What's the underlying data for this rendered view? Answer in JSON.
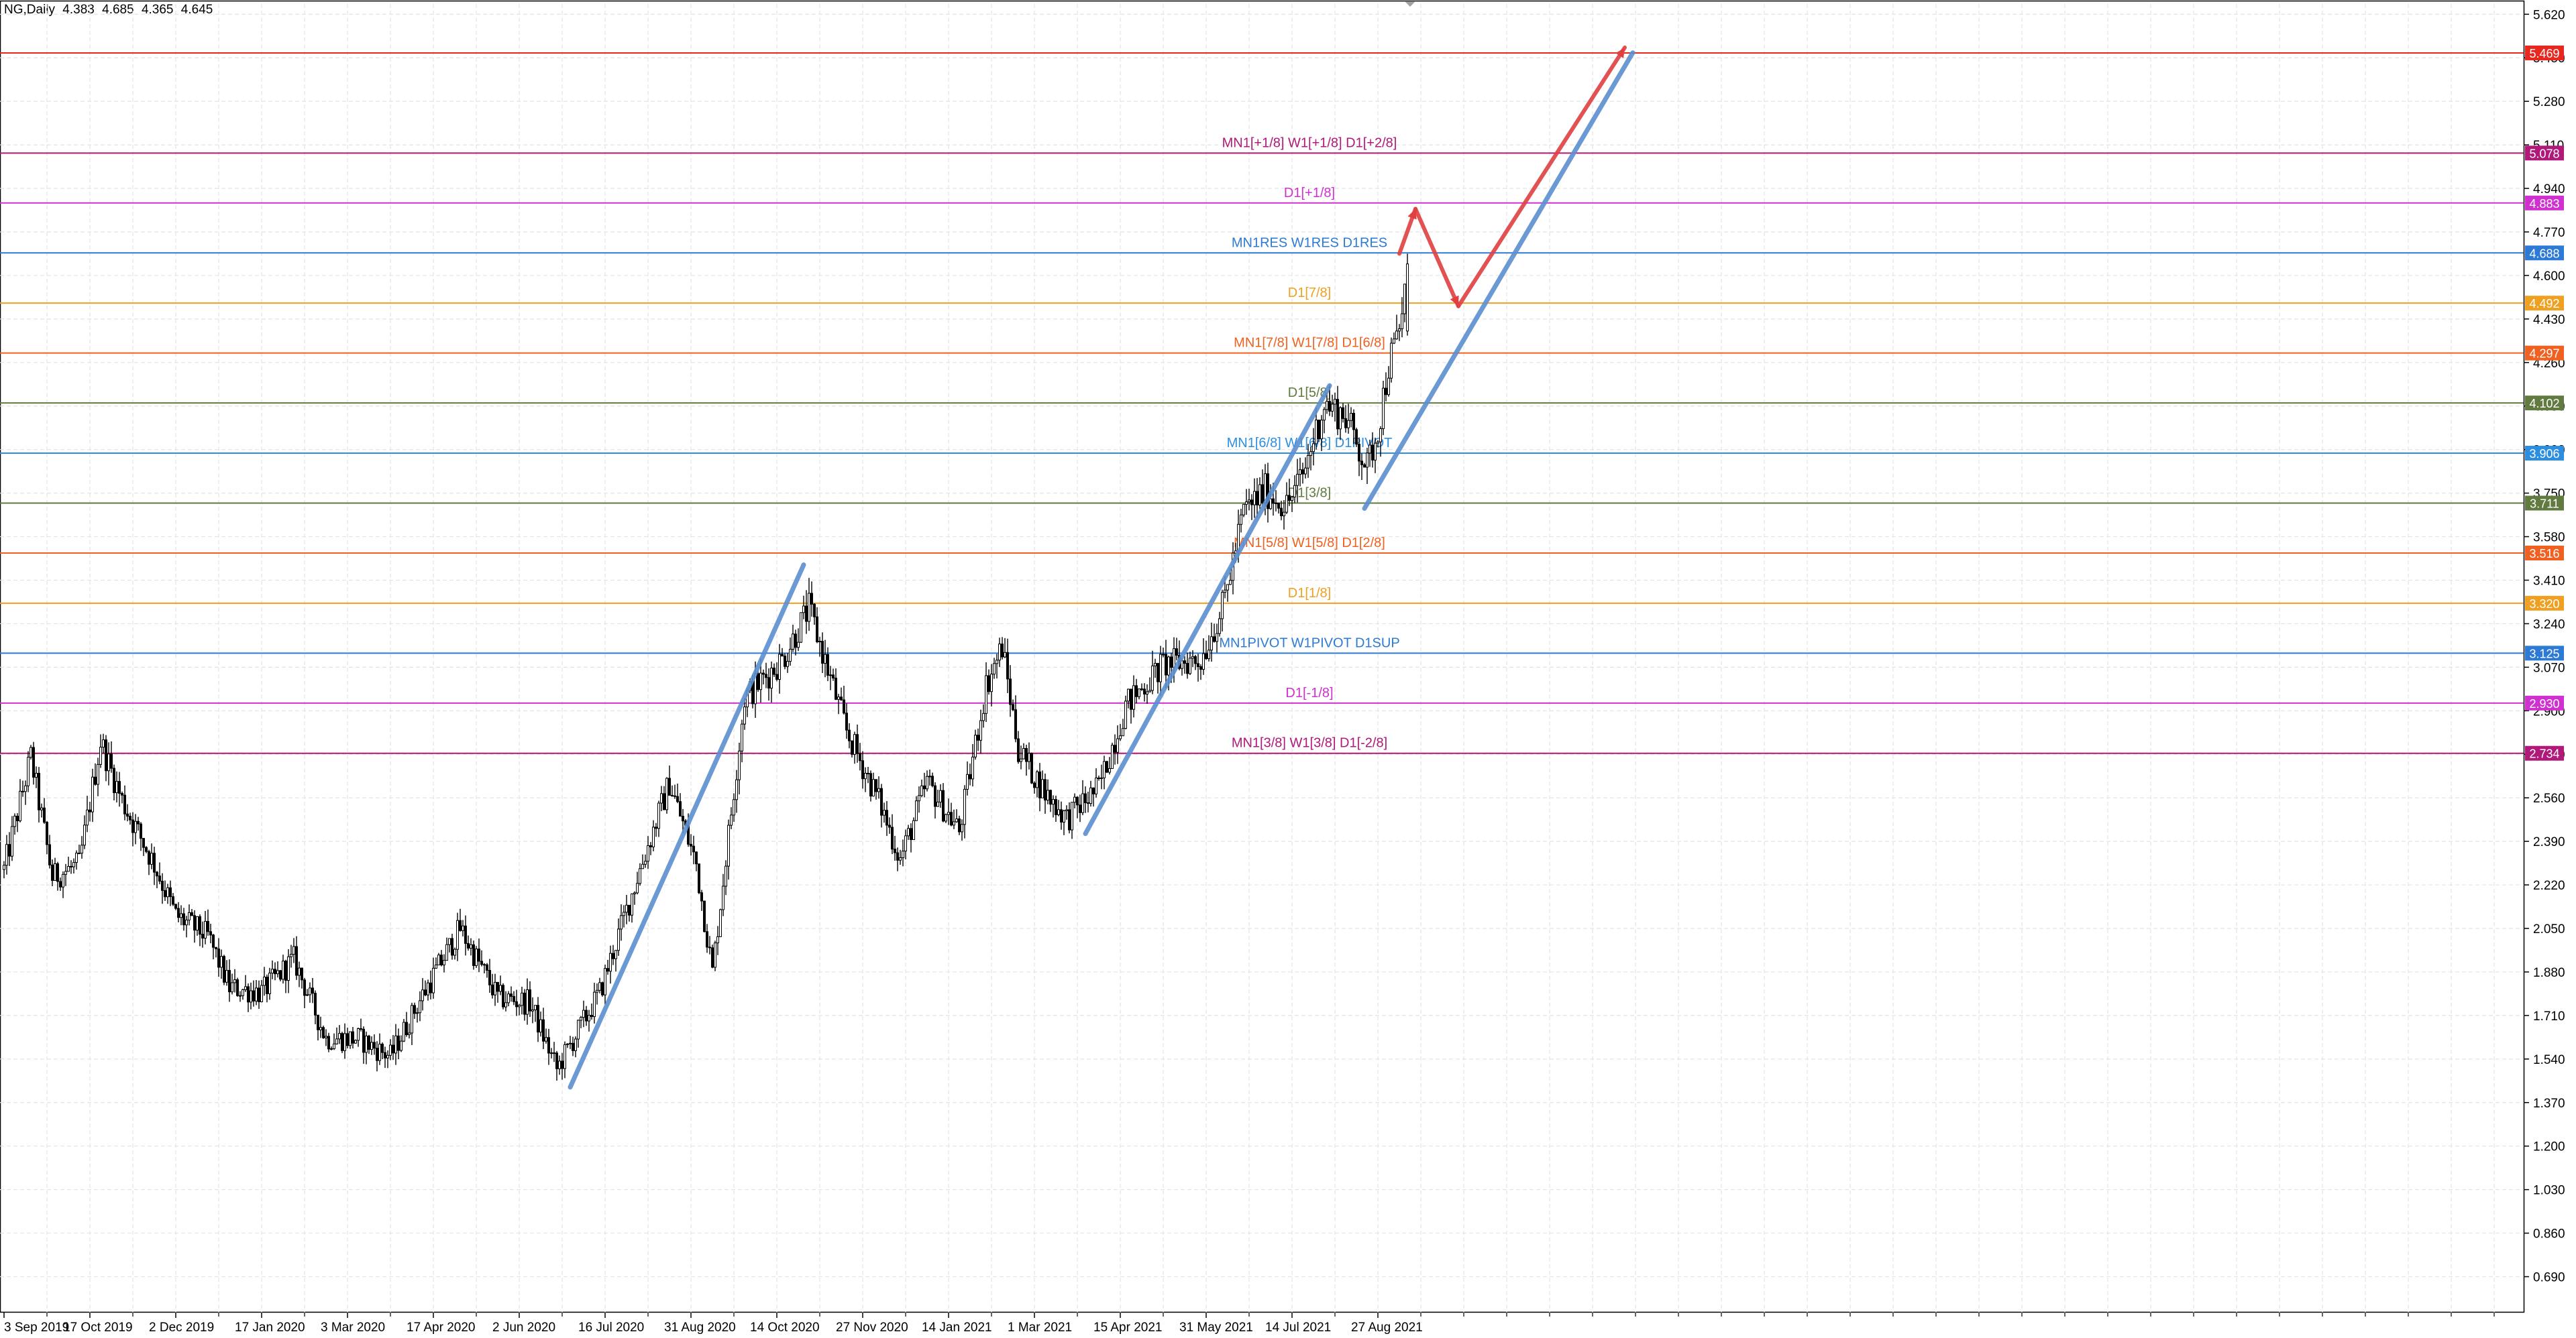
{
  "header": {
    "symbol": "NG,Daily",
    "open": "4.383",
    "high": "4.685",
    "low": "4.365",
    "close": "4.645"
  },
  "colors": {
    "background": "#ffffff",
    "grid": "#e4e4e4",
    "axis": "#000000",
    "candle_up": "#000000",
    "candle_down": "#000000",
    "trendline_blue": "#5b8fd0",
    "projection_red": "#e04040"
  },
  "chart_data": {
    "type": "candlestick",
    "symbol": "NG",
    "timeframe": "Daily",
    "y_axis": {
      "side": "right",
      "range": [
        0.55,
        5.66
      ],
      "ticks": [
        "5.620",
        "5.450",
        "5.280",
        "5.110",
        "4.940",
        "4.770",
        "4.600",
        "4.430",
        "4.260",
        "4.090",
        "3.920",
        "3.750",
        "3.580",
        "3.410",
        "3.240",
        "3.070",
        "2.900",
        "2.730",
        "2.560",
        "2.390",
        "2.220",
        "2.050",
        "1.880",
        "1.710",
        "1.540",
        "1.370",
        "1.200",
        "1.030",
        "0.860",
        "0.690"
      ]
    },
    "x_axis": {
      "labels": [
        "3 Sep 2019",
        "17 Oct 2019",
        "2 Dec 2019",
        "17 Jan 2020",
        "3 Mar 2020",
        "17 Apr 2020",
        "2 Jun 2020",
        "16 Jul 2020",
        "31 Aug 2020",
        "14 Oct 2020",
        "27 Nov 2020",
        "14 Jan 2021",
        "1 Mar 2021",
        "15 Apr 2021",
        "31 May 2021",
        "14 Jul 2021",
        "27 Aug 2021"
      ],
      "label_bars": [
        0,
        32,
        64,
        96,
        128,
        160,
        192,
        224,
        256,
        288,
        320,
        352,
        384,
        416,
        448,
        480,
        512
      ],
      "bar_spacing_px": 4
    },
    "price_levels": [
      {
        "value": 5.469,
        "tag": "5.469",
        "label": "",
        "color": "#e8281e"
      },
      {
        "value": 5.078,
        "tag": "5.078",
        "label": "MN1[+1/8] W1[+1/8] D1[+2/8]",
        "color": "#b0187a"
      },
      {
        "value": 4.883,
        "tag": "4.883",
        "label": "D1[+1/8]",
        "color": "#d030d0"
      },
      {
        "value": 4.688,
        "tag": "4.688",
        "label": "MN1RES W1RES D1RES",
        "color": "#2c7ad6"
      },
      {
        "value": 4.492,
        "tag": "4.492",
        "label": "D1[7/8]",
        "color": "#f0a020"
      },
      {
        "value": 4.297,
        "tag": "4.297",
        "label": "MN1[7/8] W1[7/8] D1[6/8]",
        "color": "#f06020"
      },
      {
        "value": 4.102,
        "tag": "4.102",
        "label": "D1[5/8]",
        "color": "#607a40"
      },
      {
        "value": 3.906,
        "tag": "3.906",
        "label": "MN1[6/8] W1[6/8] D1PIVOT",
        "color": "#2c8ee0"
      },
      {
        "value": 3.711,
        "tag": "3.711",
        "label": "D1[3/8]",
        "color": "#607a40"
      },
      {
        "value": 3.516,
        "tag": "3.516",
        "label": "MN1[5/8] W1[5/8] D1[2/8]",
        "color": "#f06020"
      },
      {
        "value": 3.32,
        "tag": "3.320",
        "label": "D1[1/8]",
        "color": "#f0a020"
      },
      {
        "value": 3.125,
        "tag": "3.125",
        "label": "MN1PIVOT W1PIVOT D1SUP",
        "color": "#2c7ad6"
      },
      {
        "value": 2.93,
        "tag": "2.930",
        "label": "D1[-1/8]",
        "color": "#d030d0"
      },
      {
        "value": 2.734,
        "tag": "2.734",
        "label": "MN1[3/8] W1[3/8] D1[-2/8]",
        "color": "#b0187a"
      }
    ],
    "price_anchors": [
      [
        0,
        2.28
      ],
      [
        10,
        2.72
      ],
      [
        18,
        2.25
      ],
      [
        28,
        2.3
      ],
      [
        36,
        2.78
      ],
      [
        44,
        2.55
      ],
      [
        56,
        2.3
      ],
      [
        64,
        2.1
      ],
      [
        76,
        2.02
      ],
      [
        84,
        1.82
      ],
      [
        96,
        1.8
      ],
      [
        108,
        1.93
      ],
      [
        120,
        1.62
      ],
      [
        132,
        1.62
      ],
      [
        144,
        1.55
      ],
      [
        156,
        1.79
      ],
      [
        170,
        2.05
      ],
      [
        184,
        1.78
      ],
      [
        196,
        1.76
      ],
      [
        206,
        1.5
      ],
      [
        222,
        1.8
      ],
      [
        236,
        2.25
      ],
      [
        248,
        2.62
      ],
      [
        258,
        2.3
      ],
      [
        264,
        1.88
      ],
      [
        276,
        2.95
      ],
      [
        290,
        3.1
      ],
      [
        300,
        3.3
      ],
      [
        314,
        2.82
      ],
      [
        326,
        2.55
      ],
      [
        334,
        2.32
      ],
      [
        344,
        2.62
      ],
      [
        356,
        2.43
      ],
      [
        366,
        3.0
      ],
      [
        372,
        3.15
      ],
      [
        378,
        2.75
      ],
      [
        388,
        2.58
      ],
      [
        396,
        2.48
      ],
      [
        408,
        2.6
      ],
      [
        418,
        2.92
      ],
      [
        432,
        3.08
      ],
      [
        446,
        3.1
      ],
      [
        454,
        3.3
      ],
      [
        462,
        3.68
      ],
      [
        470,
        3.76
      ],
      [
        478,
        3.7
      ],
      [
        484,
        3.82
      ],
      [
        492,
        4.1
      ],
      [
        500,
        4.05
      ],
      [
        508,
        3.85
      ],
      [
        512,
        4.0
      ],
      [
        516,
        4.25
      ],
      [
        520,
        4.38
      ],
      [
        523,
        4.64
      ]
    ]
  },
  "annotations": {
    "blue_trendlines": [
      {
        "from": {
          "bar": 211,
          "price": 1.43
        },
        "to": {
          "bar": 298,
          "price": 3.47
        }
      },
      {
        "from": {
          "bar": 403,
          "price": 2.42
        },
        "to": {
          "bar": 494,
          "price": 4.17
        }
      },
      {
        "from": {
          "bar": 507,
          "price": 3.69
        },
        "to": {
          "bar": 607,
          "price": 5.47
        }
      }
    ],
    "red_projection": [
      {
        "bar": 520,
        "price": 4.685
      },
      {
        "bar": 526,
        "price": 4.86
      },
      {
        "bar": 542,
        "price": 4.48
      },
      {
        "bar": 604,
        "price": 5.49
      }
    ]
  }
}
